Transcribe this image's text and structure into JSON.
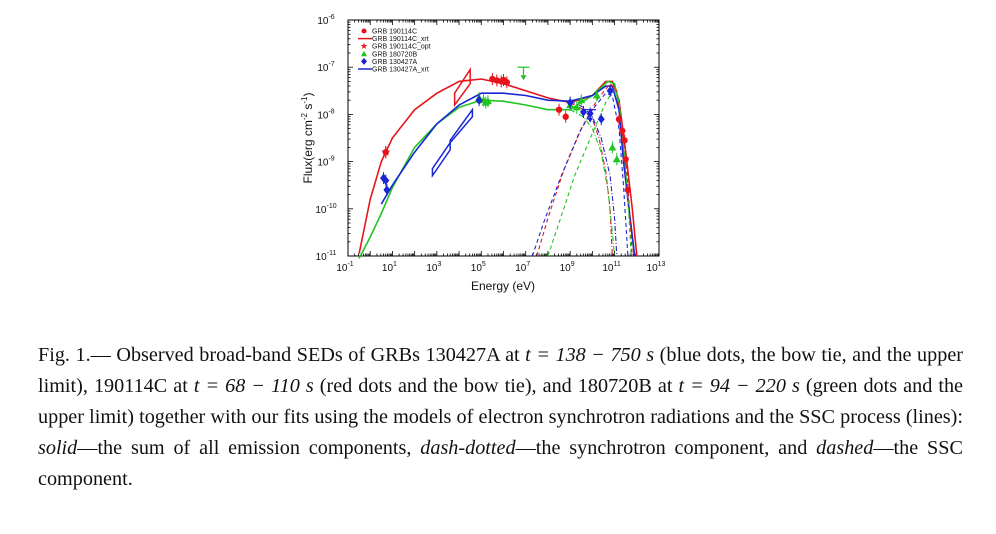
{
  "chart_data": {
    "type": "scatter",
    "xlabel": "Energy (eV)",
    "ylabel": "Flux(erg cm",
    "ylabel_sup1": "-2",
    "ylabel_mid": " s",
    "ylabel_sup2": "-1",
    "ylabel_end": ")",
    "xscale": "log",
    "yscale": "log",
    "xlim_log": [
      -1,
      13
    ],
    "ylim_log": [
      -11,
      -6
    ],
    "x_ticks": [
      {
        "e": -1,
        "base": "10",
        "exp": "-1"
      },
      {
        "e": 1,
        "base": "10",
        "exp": "1"
      },
      {
        "e": 3,
        "base": "10",
        "exp": "3"
      },
      {
        "e": 5,
        "base": "10",
        "exp": "5"
      },
      {
        "e": 7,
        "base": "10",
        "exp": "7"
      },
      {
        "e": 9,
        "base": "10",
        "exp": "9"
      },
      {
        "e": 11,
        "base": "10",
        "exp": "11"
      },
      {
        "e": 13,
        "base": "10",
        "exp": "13"
      }
    ],
    "y_ticks": [
      {
        "e": -6,
        "base": "10",
        "exp": "-6"
      },
      {
        "e": -7,
        "base": "10",
        "exp": "-7"
      },
      {
        "e": -8,
        "base": "10",
        "exp": "-8"
      },
      {
        "e": -9,
        "base": "10",
        "exp": "-9"
      },
      {
        "e": -10,
        "base": "10",
        "exp": "-10"
      },
      {
        "e": -11,
        "base": "10",
        "exp": "-11"
      }
    ],
    "legend_position": "top-left",
    "legend": [
      {
        "label": "GRB 190114C",
        "color": "#e8141b",
        "marker": "circle"
      },
      {
        "label": "GRB 190114C_xrt",
        "color": "#e8141b",
        "marker": "line"
      },
      {
        "label": "GRB 190114C_opt",
        "color": "#e8141b",
        "marker": "star"
      },
      {
        "label": "GRB 180720B",
        "color": "#21c421",
        "marker": "triangle"
      },
      {
        "label": "GRB 130427A",
        "color": "#1a26d6",
        "marker": "diamond"
      },
      {
        "label": "GRB 130427A_xrt",
        "color": "#1a26d6",
        "marker": "line"
      }
    ],
    "series": [
      {
        "name": "GRB 190114C",
        "color": "#e8141b",
        "points": [
          [
            0.7,
            -8.8
          ],
          [
            5.5,
            -7.25
          ],
          [
            5.7,
            -7.28
          ],
          [
            5.9,
            -7.3
          ],
          [
            6.0,
            -7.27
          ],
          [
            6.15,
            -7.32
          ],
          [
            8.5,
            -7.9
          ],
          [
            8.8,
            -8.05
          ],
          [
            11.2,
            -8.1
          ],
          [
            11.35,
            -8.35
          ],
          [
            11.45,
            -8.55
          ],
          [
            11.5,
            -8.95
          ],
          [
            11.6,
            -9.6
          ]
        ]
      },
      {
        "name": "GRB 180720B",
        "color": "#21c421",
        "points": [
          [
            4.9,
            -7.65
          ],
          [
            5.1,
            -7.7
          ],
          [
            5.2,
            -7.75
          ],
          [
            5.3,
            -7.72
          ],
          [
            9.0,
            -7.8
          ],
          [
            9.3,
            -7.85
          ],
          [
            9.5,
            -7.7
          ],
          [
            10.2,
            -7.6
          ],
          [
            10.9,
            -8.7
          ],
          [
            11.1,
            -8.95
          ]
        ]
      },
      {
        "name": "GRB 130427A",
        "color": "#1a26d6",
        "points": [
          [
            0.6,
            -9.35
          ],
          [
            0.7,
            -9.4
          ],
          [
            0.75,
            -9.6
          ],
          [
            4.9,
            -7.7
          ],
          [
            9.0,
            -7.75
          ],
          [
            9.6,
            -7.95
          ],
          [
            9.9,
            -7.98
          ],
          [
            10.4,
            -8.1
          ],
          [
            10.8,
            -7.5
          ]
        ]
      },
      {
        "name": "GRB 190114C_opt",
        "color": "#e8141b",
        "points": [
          [
            0.7,
            -8.8
          ]
        ]
      }
    ],
    "upper_limits": [
      {
        "color": "#21c421",
        "x": 6.9,
        "y": -7.0
      },
      {
        "color": "#1a26d6",
        "x": 9.9,
        "y": -7.9
      }
    ],
    "model_curves": {
      "red_solid": [
        [
          -0.5,
          -10.95
        ],
        [
          0,
          -9.8
        ],
        [
          0.5,
          -9.0
        ],
        [
          1,
          -8.5
        ],
        [
          2,
          -7.9
        ],
        [
          3,
          -7.55
        ],
        [
          4,
          -7.3
        ],
        [
          5,
          -7.25
        ],
        [
          6,
          -7.35
        ],
        [
          7,
          -7.5
        ],
        [
          8,
          -7.65
        ],
        [
          9,
          -7.75
        ],
        [
          10,
          -7.6
        ],
        [
          10.6,
          -7.3
        ],
        [
          10.9,
          -7.3
        ],
        [
          11.2,
          -7.7
        ],
        [
          11.5,
          -8.8
        ],
        [
          11.8,
          -10.0
        ],
        [
          12,
          -11
        ]
      ],
      "green_solid": [
        [
          -0.5,
          -11.05
        ],
        [
          0,
          -10.6
        ],
        [
          0.5,
          -10.1
        ],
        [
          1,
          -9.55
        ],
        [
          2,
          -8.7
        ],
        [
          3,
          -8.2
        ],
        [
          4,
          -7.85
        ],
        [
          5,
          -7.7
        ],
        [
          6,
          -7.72
        ],
        [
          7,
          -7.8
        ],
        [
          8,
          -7.9
        ],
        [
          9,
          -7.9
        ],
        [
          10,
          -7.6
        ],
        [
          10.7,
          -7.3
        ],
        [
          11,
          -7.35
        ],
        [
          11.2,
          -7.8
        ],
        [
          11.4,
          -8.8
        ],
        [
          11.6,
          -9.8
        ],
        [
          11.9,
          -11
        ]
      ],
      "blue_solid": [
        [
          0.5,
          -9.9
        ],
        [
          1,
          -9.5
        ],
        [
          2,
          -8.8
        ],
        [
          3,
          -8.2
        ],
        [
          4,
          -7.8
        ],
        [
          5,
          -7.55
        ],
        [
          6,
          -7.55
        ],
        [
          7,
          -7.6
        ],
        [
          8,
          -7.7
        ],
        [
          9,
          -7.72
        ],
        [
          10,
          -7.6
        ],
        [
          10.6,
          -7.4
        ],
        [
          10.9,
          -7.4
        ],
        [
          11.2,
          -7.9
        ],
        [
          11.4,
          -9.0
        ],
        [
          11.7,
          -10.2
        ],
        [
          11.9,
          -11
        ]
      ],
      "red_ssc": [
        [
          7.5,
          -11
        ],
        [
          8,
          -10.2
        ],
        [
          8.7,
          -9.2
        ],
        [
          9.5,
          -8.3
        ],
        [
          10.2,
          -7.7
        ],
        [
          10.8,
          -7.35
        ],
        [
          11.1,
          -7.5
        ],
        [
          11.4,
          -8.4
        ],
        [
          11.6,
          -9.5
        ],
        [
          11.8,
          -11
        ]
      ],
      "green_ssc": [
        [
          8.0,
          -11
        ],
        [
          8.5,
          -10.3
        ],
        [
          9.2,
          -9.3
        ],
        [
          10,
          -8.4
        ],
        [
          10.6,
          -7.75
        ],
        [
          11.0,
          -7.45
        ],
        [
          11.2,
          -7.7
        ],
        [
          11.4,
          -8.6
        ],
        [
          11.6,
          -9.8
        ],
        [
          11.75,
          -11
        ]
      ],
      "blue_ssc": [
        [
          7.3,
          -11
        ],
        [
          7.8,
          -10.3
        ],
        [
          8.6,
          -9.3
        ],
        [
          9.4,
          -8.4
        ],
        [
          10,
          -7.9
        ],
        [
          10.6,
          -7.55
        ],
        [
          10.9,
          -7.6
        ],
        [
          11.2,
          -8.3
        ],
        [
          11.4,
          -9.5
        ],
        [
          11.6,
          -11
        ]
      ],
      "red_sync": [
        [
          9,
          -7.75
        ],
        [
          9.6,
          -7.9
        ],
        [
          10,
          -8.1
        ],
        [
          10.3,
          -8.5
        ],
        [
          10.6,
          -9.2
        ],
        [
          10.8,
          -10.0
        ],
        [
          10.9,
          -11
        ]
      ],
      "green_sync": [
        [
          9,
          -7.9
        ],
        [
          9.6,
          -8.05
        ],
        [
          10,
          -8.3
        ],
        [
          10.4,
          -8.8
        ],
        [
          10.7,
          -9.6
        ],
        [
          10.9,
          -10.5
        ],
        [
          11.0,
          -11
        ]
      ],
      "blue_sync": [
        [
          9,
          -7.72
        ],
        [
          9.6,
          -7.85
        ],
        [
          10,
          -8.05
        ],
        [
          10.4,
          -8.5
        ],
        [
          10.8,
          -9.3
        ],
        [
          11.0,
          -10.2
        ],
        [
          11.1,
          -11
        ]
      ]
    }
  },
  "caption": {
    "fig_label": "Fig. 1.—",
    "part1": " Observed broad-band SEDs of GRBs 130427A at ",
    "t1": "t = 138 − 750 s",
    "part2": " (blue dots, the bow tie, and the upper limit), 190114C at ",
    "t2": "t = 68 − 110 s",
    "part3": " (red dots and the bow tie), and 180720B at ",
    "t3": "t = 94 − 220 s",
    "part4": " (green dots and the upper limit) together with our fits using the models of electron synchrotron radiations and the SSC process (lines): ",
    "solid": "solid",
    "part5": "—the sum of all emission components, ",
    "dashdotted": "dash-dotted",
    "part6": "—the synchrotron component, and ",
    "dashed": "dashed",
    "part7": "—the SSC component."
  }
}
